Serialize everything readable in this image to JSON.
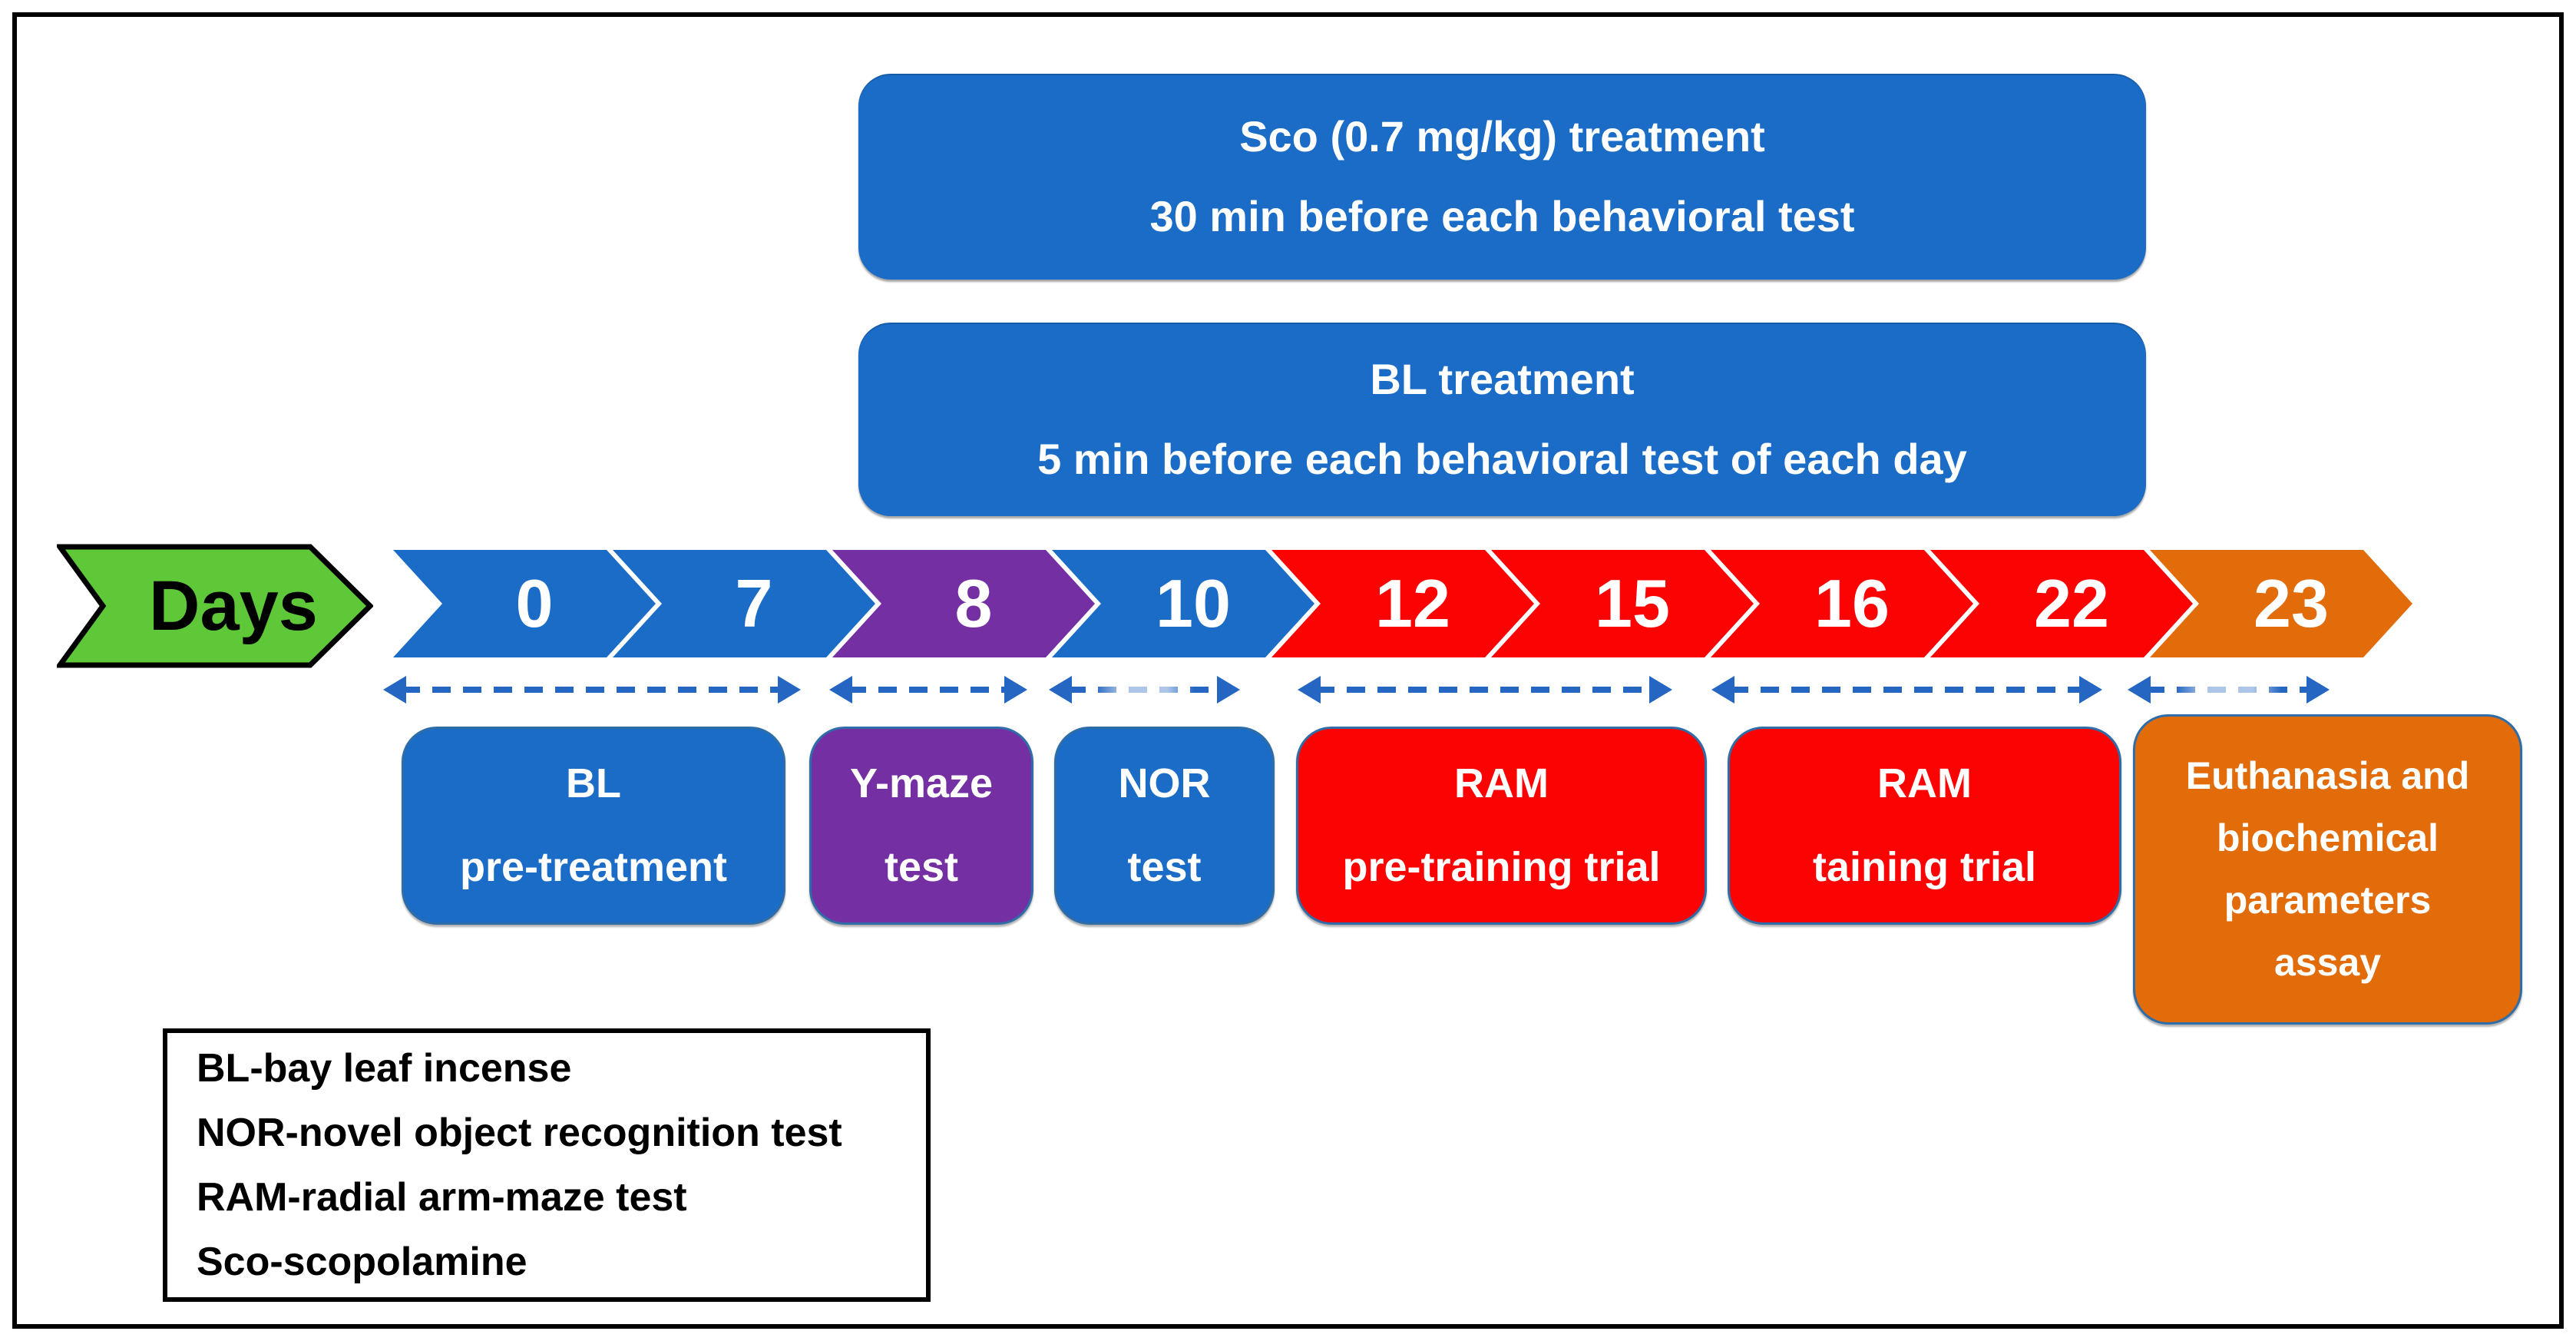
{
  "figure": {
    "type": "experimental-timeline-diagram",
    "background": "#FFFFFF",
    "frame_border_color": "#000000"
  },
  "colors": {
    "blue": "#1B6CC6",
    "purple": "#7430A3",
    "red": "#FB0303",
    "orange": "#E26B0A",
    "green": "#5EC839",
    "dash_arrow": "#2566C2",
    "phase_outline": "#2E6DA8"
  },
  "banners": [
    {
      "id": "sco-treatment",
      "lines": [
        "Sco (0.7 mg/kg) treatment",
        "30 min before each behavioral test"
      ],
      "color": "#1B6CC6"
    },
    {
      "id": "bl-treatment",
      "lines": [
        "BL treatment",
        "5 min before each behavioral test of each day"
      ],
      "color": "#1B6CC6"
    }
  ],
  "days_arrow": {
    "label": "Days",
    "color": "#5EC839"
  },
  "timeline": [
    {
      "day": "0",
      "color": "#1B6CC6"
    },
    {
      "day": "7",
      "color": "#1B6CC6"
    },
    {
      "day": "8",
      "color": "#7430A3"
    },
    {
      "day": "10",
      "color": "#1B6CC6"
    },
    {
      "day": "12",
      "color": "#FB0303"
    },
    {
      "day": "15",
      "color": "#FB0303"
    },
    {
      "day": "16",
      "color": "#FB0303"
    },
    {
      "day": "22",
      "color": "#FB0303"
    },
    {
      "day": "23",
      "color": "#E26B0A"
    }
  ],
  "phases": [
    {
      "id": "bl-pre",
      "lines": [
        "BL",
        "pre-treatment"
      ],
      "color": "#1B6CC6"
    },
    {
      "id": "ymaze",
      "lines": [
        "Y-maze",
        "test"
      ],
      "color": "#7430A3"
    },
    {
      "id": "nor",
      "lines": [
        "NOR",
        "test"
      ],
      "color": "#1B6CC6"
    },
    {
      "id": "ram-pre",
      "lines": [
        "RAM",
        "pre-training trial"
      ],
      "color": "#FB0303"
    },
    {
      "id": "ram-train",
      "lines": [
        "RAM",
        "taining trial"
      ],
      "color": "#FB0303"
    },
    {
      "id": "euthanasia",
      "lines": [
        "Euthanasia and",
        "biochemical",
        "parameters",
        "assay"
      ],
      "color": "#E26B0A"
    }
  ],
  "legend": {
    "lines": [
      "BL-bay leaf incense",
      "NOR-novel object recognition test",
      "RAM-radial arm-maze test",
      "Sco-scopolamine"
    ]
  }
}
